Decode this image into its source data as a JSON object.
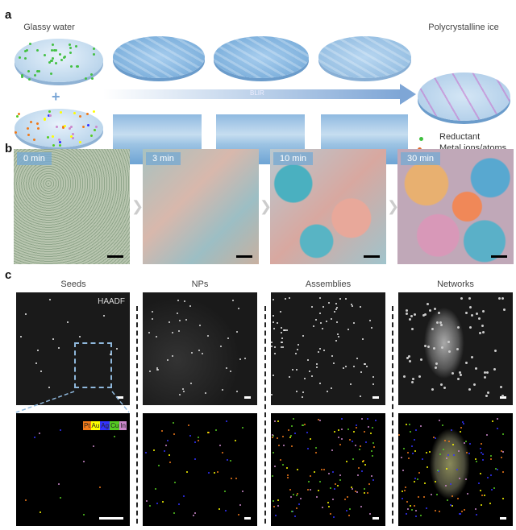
{
  "panel_a": {
    "label": "a",
    "left_title": "Glassy water",
    "right_title": "Polycrystalline ice",
    "arrow_label": "BLIR",
    "plus": "+",
    "legend": [
      {
        "label": "Reductant",
        "color": "#3fbf3f"
      },
      {
        "label": "Metal ions/atoms",
        "color": "#e06a2a"
      }
    ]
  },
  "panel_b": {
    "label": "b",
    "frames": [
      {
        "time": "0 min"
      },
      {
        "time": "3 min"
      },
      {
        "time": "10 min"
      },
      {
        "time": "30 min"
      }
    ]
  },
  "panel_c": {
    "label": "c",
    "columns": [
      "Seeds",
      "NPs",
      "Assemblies",
      "Networks"
    ],
    "mode_label": "HAADF",
    "elements": [
      {
        "name": "Pt",
        "color": "#f07a1a"
      },
      {
        "name": "Au",
        "color": "#ffff00"
      },
      {
        "name": "Ag",
        "color": "#3333ff"
      },
      {
        "name": "Cu",
        "color": "#55cc22"
      },
      {
        "name": "In",
        "color": "#cc88cc"
      }
    ]
  }
}
